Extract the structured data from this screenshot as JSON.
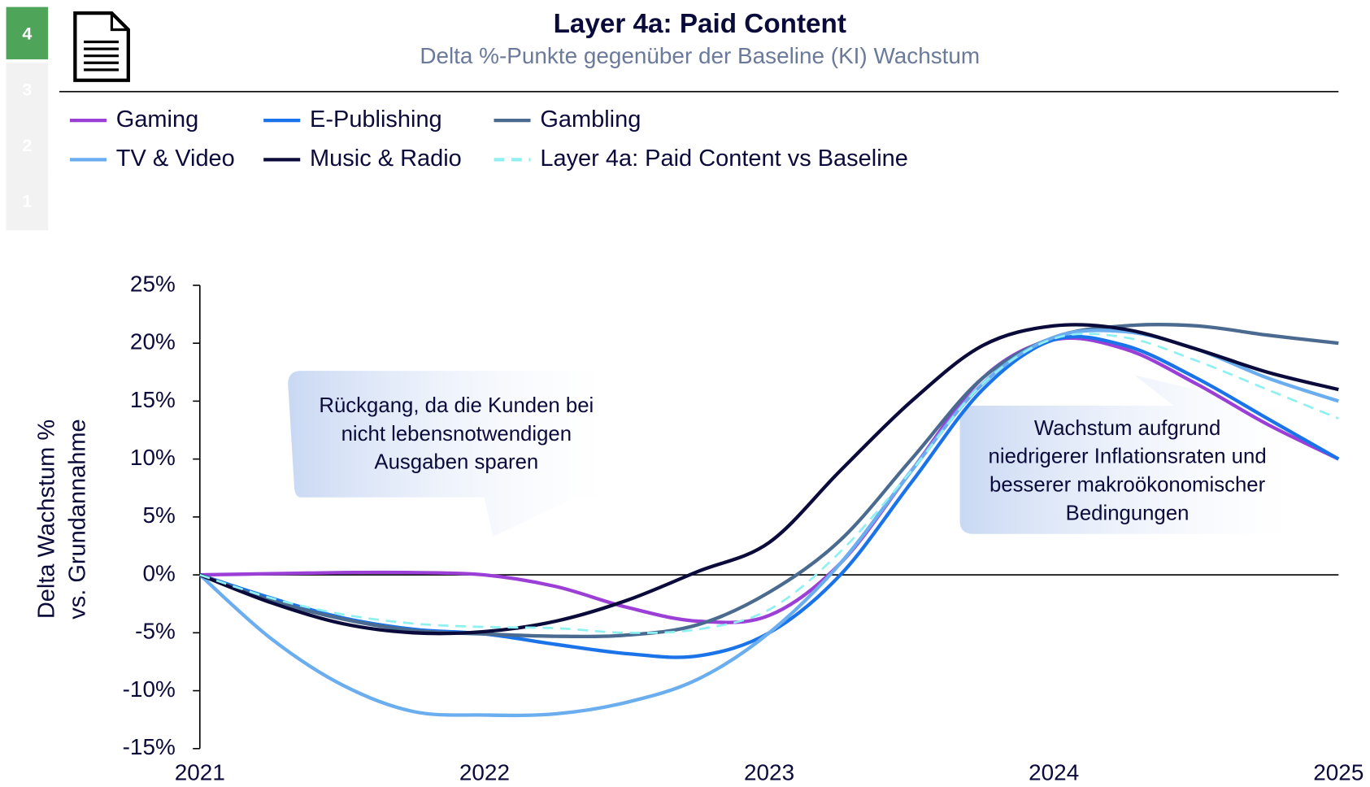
{
  "nav": [
    "4",
    "3",
    "2",
    "1"
  ],
  "chart_data": {
    "type": "line",
    "title": "Layer 4a: Paid Content",
    "subtitle": "Delta %-Punkte gegenüber der Baseline (KI) Wachstum",
    "y_label": [
      "Delta Wachstum %",
      "vs. Grundannahme"
    ],
    "annotations": [
      {
        "lines": [
          "Rückgang, da die Kunden bei",
          "nicht lebensnotwendigen",
          "Ausgaben sparen"
        ]
      },
      {
        "lines": [
          "Wachstum aufgrund",
          "niedrigerer Inflationsraten und",
          "besserer makroökonomischer",
          "Bedingungen"
        ]
      }
    ],
    "x": [
      2021,
      2021.25,
      2021.5,
      2021.75,
      2022,
      2022.25,
      2022.5,
      2022.75,
      2023,
      2023.25,
      2023.5,
      2023.75,
      2024,
      2024.25,
      2024.5,
      2024.75,
      2025
    ],
    "xlim": [
      2021,
      2025
    ],
    "xticks": [
      2021,
      2022,
      2023,
      2024,
      2025
    ],
    "ylim": [
      -15,
      25
    ],
    "yticks": [
      {
        "value": -15,
        "label": "-15%"
      },
      {
        "value": -10,
        "label": "-10%"
      },
      {
        "value": -5,
        "label": "-5%"
      },
      {
        "value": 0,
        "label": "0%"
      },
      {
        "value": 5,
        "label": "5%"
      },
      {
        "value": 10,
        "label": "10%"
      },
      {
        "value": 15,
        "label": "15%"
      },
      {
        "value": 20,
        "label": "20%"
      },
      {
        "value": 25,
        "label": "25%"
      }
    ],
    "series": [
      {
        "name": "Gaming",
        "color": "#9b3fd6",
        "values": [
          0,
          0.1,
          0.2,
          0.2,
          0,
          -1,
          -2.8,
          -4,
          -3.5,
          1,
          9,
          17,
          20.3,
          19.5,
          16.5,
          13,
          10
        ]
      },
      {
        "name": "E-Publishing",
        "color": "#1a73e8",
        "values": [
          0,
          -2,
          -3.7,
          -4.7,
          -5.1,
          -6,
          -6.8,
          -7,
          -5,
          0,
          8,
          16,
          20.3,
          19.8,
          17,
          13.5,
          10
        ]
      },
      {
        "name": "Gambling",
        "color": "#4a6a90",
        "values": [
          0,
          -2.2,
          -3.8,
          -4.8,
          -5.1,
          -5.3,
          -5.2,
          -4.3,
          -1.5,
          3,
          10,
          17,
          20.5,
          21.5,
          21.5,
          20.7,
          20
        ]
      },
      {
        "name": "TV & Video",
        "color": "#6aaef0",
        "values": [
          0,
          -5.5,
          -9.5,
          -11.8,
          -12.1,
          -12,
          -11,
          -9,
          -5,
          1,
          9,
          16.5,
          20.5,
          21,
          19.5,
          17,
          15
        ]
      },
      {
        "name": "Music & Radio",
        "color": "#0b0b3b",
        "values": [
          0,
          -2.4,
          -4.2,
          -5,
          -4.9,
          -4,
          -2.2,
          0.3,
          2.8,
          9,
          15,
          19.8,
          21.5,
          21.2,
          19.5,
          17.5,
          16
        ]
      },
      {
        "name": "Layer 4a: Paid Content vs Baseline",
        "color": "#8ef0f0",
        "dashed": true,
        "values": [
          0,
          -2,
          -3.4,
          -4.2,
          -4.5,
          -4.6,
          -5,
          -4.7,
          -3,
          2,
          9,
          16.5,
          20.4,
          20.5,
          18.5,
          16,
          13.5
        ]
      }
    ]
  }
}
